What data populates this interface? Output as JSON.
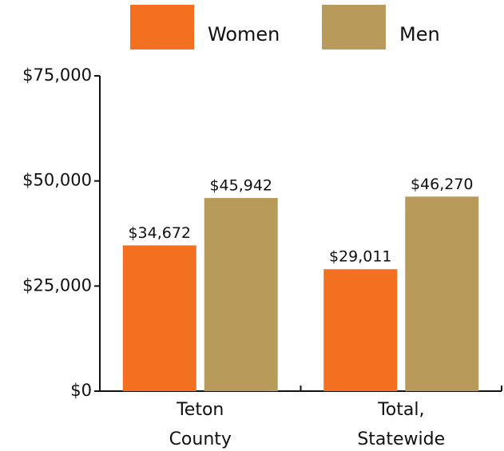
{
  "chart_data": {
    "type": "bar",
    "categories": [
      "Teton County",
      "Total, Statewide"
    ],
    "series": [
      {
        "name": "Women",
        "color": "#f37021",
        "values": [
          34672,
          29011
        ],
        "value_labels": [
          "$34,672",
          "$29,011"
        ]
      },
      {
        "name": "Men",
        "color": "#b89a5b",
        "values": [
          45942,
          46270
        ],
        "value_labels": [
          "$45,942",
          "$46,270"
        ]
      }
    ],
    "ylim": [
      0,
      75000
    ],
    "yticks": [
      {
        "value": 0,
        "label": "$0"
      },
      {
        "value": 25000,
        "label": "$25,000"
      },
      {
        "value": 50000,
        "label": "$50,000"
      },
      {
        "value": 75000,
        "label": "$75,000"
      }
    ],
    "legend": "top"
  }
}
